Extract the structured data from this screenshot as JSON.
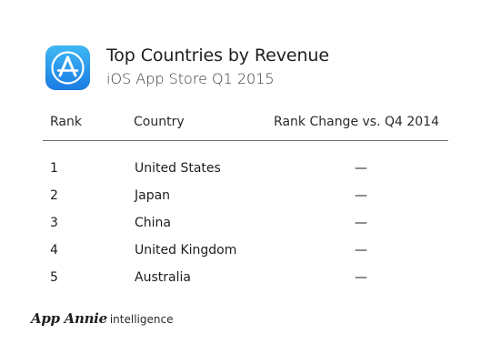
{
  "header": {
    "title": "Top Countries by Revenue",
    "subtitle": "iOS App Store Q1 2015",
    "icon": "app-store-icon"
  },
  "chart_data": {
    "type": "table",
    "title": "Top Countries by Revenue",
    "subtitle": "iOS App Store Q1 2015",
    "columns": [
      "Rank",
      "Country",
      "Rank Change vs. Q4 2014"
    ],
    "rows": [
      {
        "rank": "1",
        "country": "United States",
        "change": "—"
      },
      {
        "rank": "2",
        "country": "Japan",
        "change": "—"
      },
      {
        "rank": "3",
        "country": "China",
        "change": "—"
      },
      {
        "rank": "4",
        "country": "United Kingdom",
        "change": "—"
      },
      {
        "rank": "5",
        "country": "Australia",
        "change": "—"
      }
    ]
  },
  "footer": {
    "brand": "App Annie",
    "product": "intelligence"
  },
  "colors": {
    "icon_top": "#3fb9f5",
    "icon_bottom": "#1a7be3",
    "rule": "#6d6d6d",
    "text": "#1e1e1e"
  }
}
